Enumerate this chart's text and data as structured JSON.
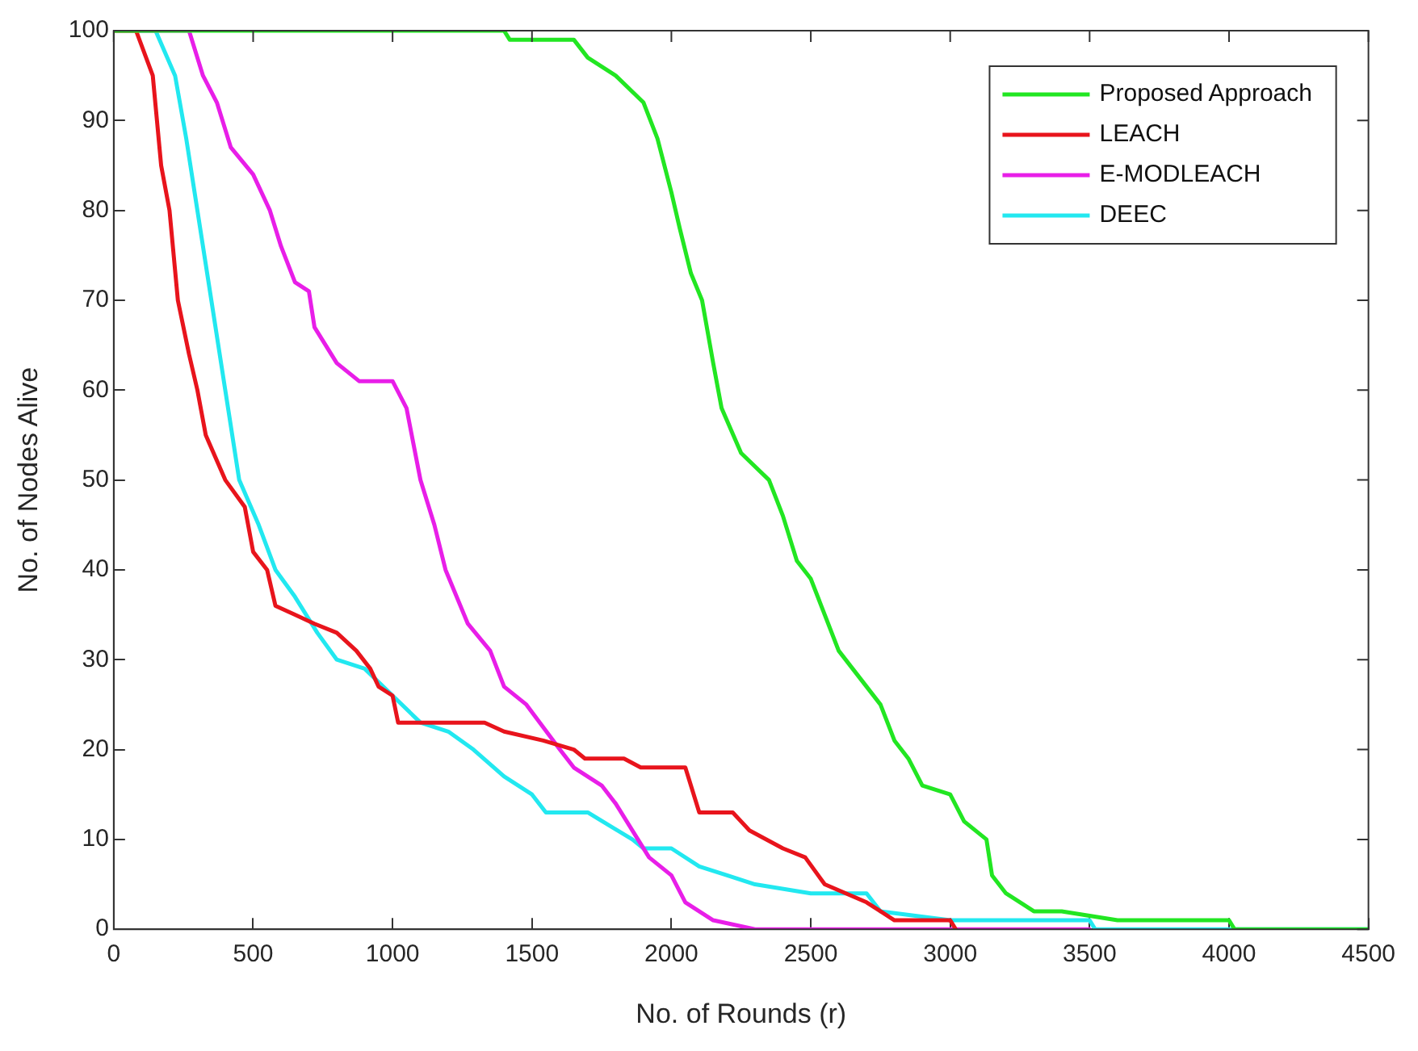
{
  "chart_data": {
    "type": "line",
    "xlabel": "No. of Rounds (r)",
    "ylabel": "No. of Nodes Alive",
    "xlim": [
      0,
      4500
    ],
    "xticks": [
      0,
      500,
      1000,
      1500,
      2000,
      2500,
      3000,
      3500,
      4000,
      4500
    ],
    "ylim": [
      0,
      100
    ],
    "yticks": [
      0,
      10,
      20,
      30,
      40,
      50,
      60,
      70,
      80,
      90,
      100
    ],
    "grid": false,
    "legend": "top right",
    "marker": "none",
    "line_style": "solid",
    "series": [
      {
        "name": "Proposed Approach",
        "color": "#22e622",
        "x": [
          0,
          1400,
          1420,
          1650,
          1700,
          1800,
          1900,
          1950,
          2000,
          2030,
          2070,
          2110,
          2150,
          2180,
          2250,
          2350,
          2400,
          2450,
          2500,
          2550,
          2600,
          2650,
          2700,
          2750,
          2800,
          2850,
          2900,
          3000,
          3050,
          3130,
          3150,
          3200,
          3300,
          3400,
          3600,
          4000,
          4020,
          4500
        ],
        "values": [
          100,
          100,
          99,
          99,
          97,
          95,
          92,
          88,
          82,
          78,
          73,
          70,
          63,
          58,
          53,
          50,
          46,
          41,
          39,
          35,
          31,
          29,
          27,
          25,
          21,
          19,
          16,
          15,
          12,
          10,
          6,
          4,
          2,
          2,
          1,
          1,
          0,
          0
        ]
      },
      {
        "name": "LEACH",
        "color": "#e8141c",
        "x": [
          0,
          80,
          140,
          170,
          200,
          230,
          270,
          300,
          330,
          400,
          470,
          500,
          550,
          580,
          650,
          720,
          800,
          870,
          920,
          950,
          1000,
          1020,
          1330,
          1400,
          1540,
          1650,
          1690,
          1830,
          1890,
          2050,
          2100,
          2220,
          2280,
          2400,
          2480,
          2550,
          2700,
          2750,
          2800,
          3000,
          3020
        ],
        "values": [
          100,
          100,
          95,
          85,
          80,
          70,
          64,
          60,
          55,
          50,
          47,
          42,
          40,
          36,
          35,
          34,
          33,
          31,
          29,
          27,
          26,
          23,
          23,
          22,
          21,
          20,
          19,
          19,
          18,
          18,
          13,
          13,
          11,
          9,
          8,
          5,
          3,
          2,
          1,
          1,
          0
        ]
      },
      {
        "name": "E-MODLEACH",
        "color": "#e81ee8",
        "x": [
          0,
          270,
          320,
          370,
          420,
          500,
          560,
          600,
          650,
          700,
          720,
          800,
          880,
          1000,
          1050,
          1100,
          1150,
          1190,
          1270,
          1350,
          1400,
          1480,
          1600,
          1650,
          1750,
          1800,
          1880,
          1920,
          2000,
          2050,
          2150,
          2300,
          3500
        ],
        "values": [
          100,
          100,
          95,
          92,
          87,
          84,
          80,
          76,
          72,
          71,
          67,
          63,
          61,
          61,
          58,
          50,
          45,
          40,
          34,
          31,
          27,
          25,
          20,
          18,
          16,
          14,
          10,
          8,
          6,
          3,
          1,
          0,
          0
        ]
      },
      {
        "name": "DEEC",
        "color": "#22e8f0",
        "x": [
          0,
          150,
          220,
          260,
          300,
          350,
          400,
          450,
          520,
          580,
          650,
          730,
          800,
          900,
          1000,
          1100,
          1200,
          1290,
          1400,
          1500,
          1550,
          1700,
          1860,
          1900,
          2000,
          2100,
          2200,
          2300,
          2500,
          2700,
          2750,
          3000,
          3500,
          3520,
          4500
        ],
        "values": [
          100,
          100,
          95,
          88,
          80,
          70,
          60,
          50,
          45,
          40,
          37,
          33,
          30,
          29,
          26,
          23,
          22,
          20,
          17,
          15,
          13,
          13,
          10,
          9,
          9,
          7,
          6,
          5,
          4,
          4,
          2,
          1,
          1,
          0,
          0
        ]
      }
    ]
  }
}
